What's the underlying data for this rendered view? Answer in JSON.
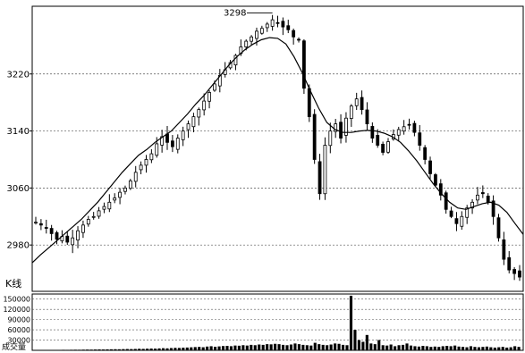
{
  "chart_data": [
    {
      "type": "candlestick",
      "title": "",
      "panel_label": "K线",
      "ylim": [
        2915,
        3315
      ],
      "y_ticks": [
        2980,
        3060,
        3140,
        3220
      ],
      "y_tick_labels": [
        "2980",
        "3060",
        "3140",
        "3220"
      ],
      "grid": "horizontal dashed",
      "annotation": {
        "label": "3298",
        "value": 3298
      },
      "series": [
        {
          "name": "",
          "kind": "price",
          "values": [
            3012,
            3008,
            3004,
            2996,
            2988,
            2992,
            2984,
            2990,
            3000,
            3008,
            3016,
            3020,
            3028,
            3034,
            3040,
            3046,
            3054,
            3060,
            3070,
            3082,
            3092,
            3100,
            3108,
            3122,
            3132,
            3124,
            3118,
            3130,
            3140,
            3150,
            3160,
            3170,
            3182,
            3194,
            3206,
            3218,
            3226,
            3236,
            3246,
            3258,
            3266,
            3272,
            3280,
            3284,
            3290,
            3296,
            3292,
            3286,
            3282,
            3272,
            3268,
            3200,
            3160,
            3100,
            3052,
            3120,
            3140,
            3150,
            3130,
            3158,
            3175,
            3185,
            3170,
            3150,
            3130,
            3120,
            3110,
            3125,
            3135,
            3142,
            3146,
            3148,
            3138,
            3120,
            3100,
            3080,
            3064,
            3050,
            3030,
            3020,
            3010,
            3020,
            3032,
            3040,
            3050,
            3052,
            3040,
            3020,
            2990,
            2960,
            2945,
            2940,
            2935
          ]
        },
        {
          "name": "",
          "kind": "moving-average",
          "values": [
            2955,
            2966,
            2976,
            2986,
            2996,
            3006,
            3016,
            3028,
            3040,
            3054,
            3068,
            3082,
            3094,
            3106,
            3114,
            3124,
            3132,
            3140,
            3152,
            3164,
            3178,
            3190,
            3204,
            3218,
            3232,
            3244,
            3254,
            3262,
            3268,
            3271,
            3270,
            3262,
            3244,
            3222,
            3196,
            3172,
            3152,
            3142,
            3138,
            3138,
            3140,
            3141,
            3140,
            3137,
            3132,
            3124,
            3112,
            3098,
            3082,
            3066,
            3052,
            3040,
            3032,
            3030,
            3034,
            3038,
            3040,
            3036,
            3026,
            3010,
            2995
          ]
        }
      ]
    },
    {
      "type": "bar",
      "title": "",
      "panel_label": "成交量",
      "ylim": [
        0,
        165000
      ],
      "y_ticks": [
        30000,
        60000,
        90000,
        120000,
        150000
      ],
      "y_tick_labels": [
        "30000",
        "60000",
        "90000",
        "120000",
        "150000"
      ],
      "grid": "horizontal dashed",
      "series": [
        {
          "name": "",
          "values": [
            800,
            900,
            1000,
            900,
            1200,
            1100,
            1300,
            1500,
            1400,
            1600,
            1800,
            1700,
            2000,
            2200,
            2100,
            2400,
            2600,
            2500,
            2800,
            3000,
            3200,
            3100,
            3500,
            3800,
            3600,
            4000,
            4500,
            4200,
            4800,
            5200,
            5000,
            5600,
            6200,
            5800,
            6600,
            7200,
            7000,
            7800,
            8200,
            8800,
            9500,
            10000,
            9000,
            11000,
            12000,
            10500,
            11500,
            12500,
            13000,
            12000,
            14000,
            13500,
            15000,
            14000,
            16000,
            15000,
            17000,
            16000,
            18000,
            17500,
            19000,
            18000,
            16000,
            15000,
            17000,
            20000,
            18000,
            16000,
            15000,
            14000,
            22000,
            18000,
            16000,
            15000,
            17000,
            20000,
            19000,
            16000,
            15000,
            160000,
            60000,
            30000,
            25000,
            45000,
            20000,
            18000,
            30000,
            15000,
            14000,
            17000,
            12000,
            15000,
            16000,
            20000,
            14000,
            12000,
            11000,
            13000,
            12000,
            10000,
            11000,
            10000,
            12000,
            13000,
            12000,
            14000,
            11000,
            10000,
            9000,
            12000,
            10000,
            9000,
            10000,
            11000,
            9000,
            8000,
            9000,
            10000,
            8000,
            9000,
            12000,
            10000
          ]
        }
      ]
    }
  ]
}
